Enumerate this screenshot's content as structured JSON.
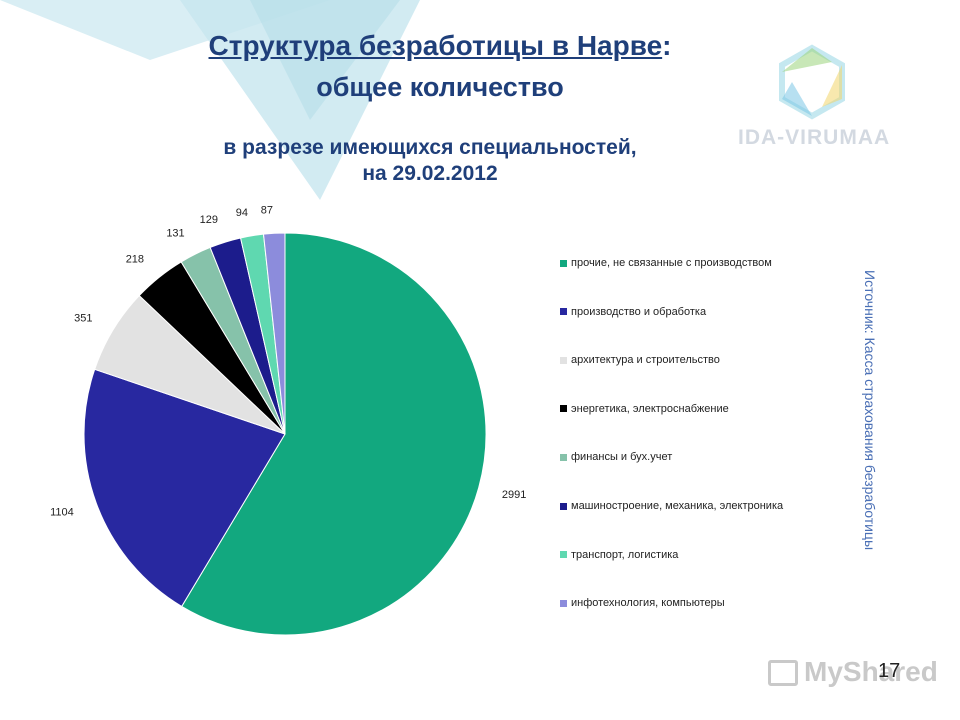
{
  "slide": {
    "title_main": "Структура безработицы в Нарве",
    "title_colon": ":",
    "title_second": "общее количество",
    "subtitle_line1": "в разрезе имеющихся специальностей,",
    "subtitle_line2": "на 29.02.2012",
    "logo_text": "IDA-VIRUMAA",
    "logo_sub": "",
    "source_note": "Источник: Касса страхования безработицы",
    "page_number": "17",
    "watermark": "MyShared"
  },
  "chart_data": {
    "type": "pie",
    "title": "",
    "start_angle_deg": 0,
    "direction": "clockwise",
    "legend_position": "right",
    "categories": [
      "прочие, не связанные с производством",
      "производство и обработка",
      "архитектура и строительство",
      "энергетика, электроснабжение",
      "финансы и бух.учет",
      "машиностроение, механика, электроника",
      "транспорт, логистика",
      "инфотехнология, компьютеры"
    ],
    "values": [
      2991,
      1104,
      351,
      218,
      131,
      129,
      94,
      87
    ],
    "value_labels": [
      "2991",
      "1104",
      "351",
      "218",
      "131",
      "129",
      "94",
      "87"
    ],
    "colors": [
      "#12a87f",
      "#2828a0",
      "#e2e2e2",
      "#000000",
      "#86c2aa",
      "#1c1c8c",
      "#5fd8b0",
      "#8c8cdc"
    ]
  }
}
